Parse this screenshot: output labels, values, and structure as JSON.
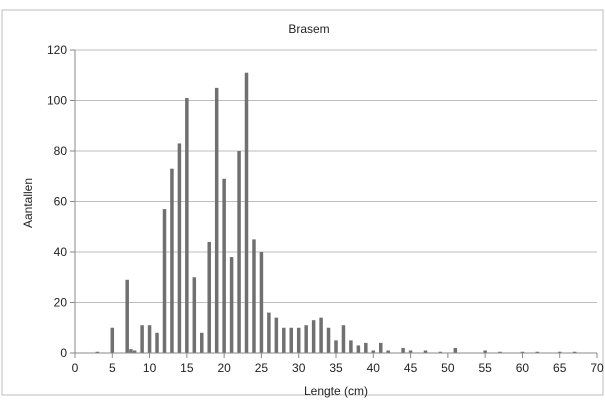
{
  "chart_data": {
    "type": "bar",
    "title": "Brasem",
    "xlabel": "Lengte (cm)",
    "ylabel": "Aantallen",
    "xlim": [
      0,
      70
    ],
    "ylim": [
      0,
      120
    ],
    "xticks": [
      0,
      5,
      10,
      15,
      20,
      25,
      30,
      35,
      40,
      45,
      50,
      55,
      60,
      65,
      70
    ],
    "yticks": [
      0,
      20,
      40,
      60,
      80,
      100,
      120
    ],
    "grid": true,
    "legend": "none",
    "bar_color": "#707070",
    "x": [
      3,
      5,
      7,
      7.5,
      8,
      9,
      10,
      11,
      12,
      13,
      14,
      15,
      16,
      17,
      18,
      19,
      20,
      21,
      22,
      23,
      24,
      25,
      26,
      27,
      28,
      29,
      30,
      31,
      32,
      33,
      34,
      35,
      36,
      37,
      38,
      39,
      40,
      41,
      42,
      44,
      45,
      47,
      49,
      51,
      55,
      57,
      60,
      62,
      65,
      67
    ],
    "values": [
      0.5,
      10,
      29,
      1.5,
      1,
      11,
      11,
      8,
      57,
      73,
      83,
      101,
      30,
      8,
      44,
      105,
      69,
      38,
      80,
      111,
      45,
      40,
      16,
      14,
      10,
      10,
      10,
      11,
      13,
      14,
      10,
      5,
      11,
      5,
      3,
      4,
      1,
      4,
      1,
      2,
      1,
      1,
      0.5,
      2,
      1,
      0.5,
      0.5,
      0.5,
      0.5,
      0.5
    ]
  }
}
